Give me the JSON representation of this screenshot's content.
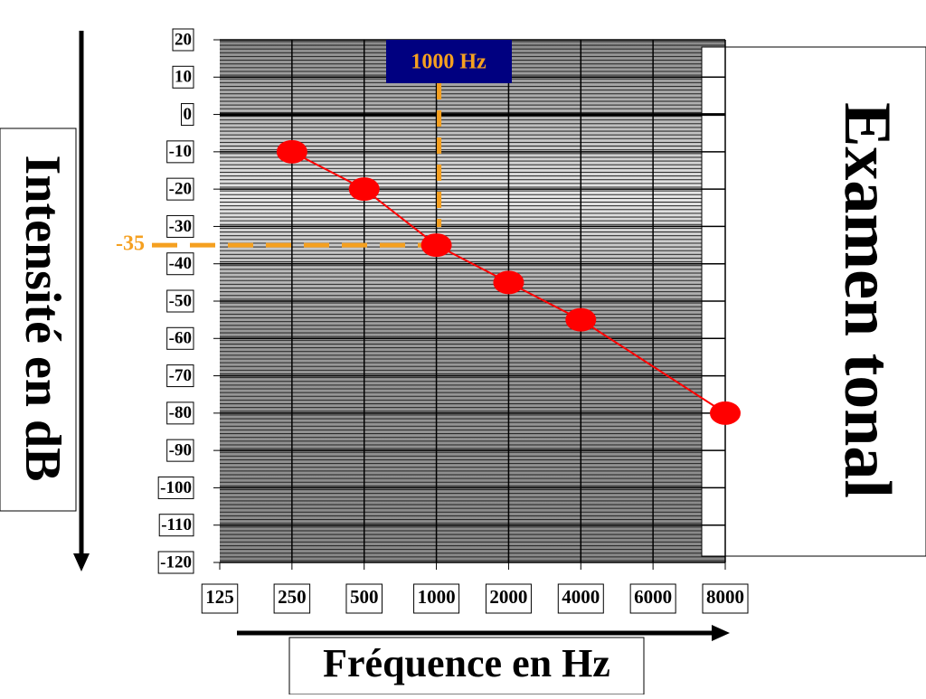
{
  "chart_data": {
    "type": "line",
    "title": "Examen tonal",
    "y_label": "Intensité en dB",
    "x_label": "Fréquence en Hz",
    "categories": [
      "125",
      "250",
      "500",
      "1000",
      "2000",
      "4000",
      "6000",
      "8000"
    ],
    "series": [
      {
        "color": "#ff0000",
        "x": [
          "250",
          "500",
          "1000",
          "2000",
          "4000",
          "8000"
        ],
        "values": [
          -10,
          -20,
          -35,
          -45,
          -55,
          -80
        ]
      }
    ],
    "ylim": [
      -120,
      20
    ],
    "yticks": [
      20,
      10,
      0,
      -10,
      -20,
      -30,
      -40,
      -50,
      -60,
      -70,
      -80,
      -90,
      -100,
      -110,
      -120
    ],
    "highlight": {
      "x": "1000",
      "x_label": "1000 Hz",
      "y": -35,
      "color": "#f5a020"
    }
  }
}
